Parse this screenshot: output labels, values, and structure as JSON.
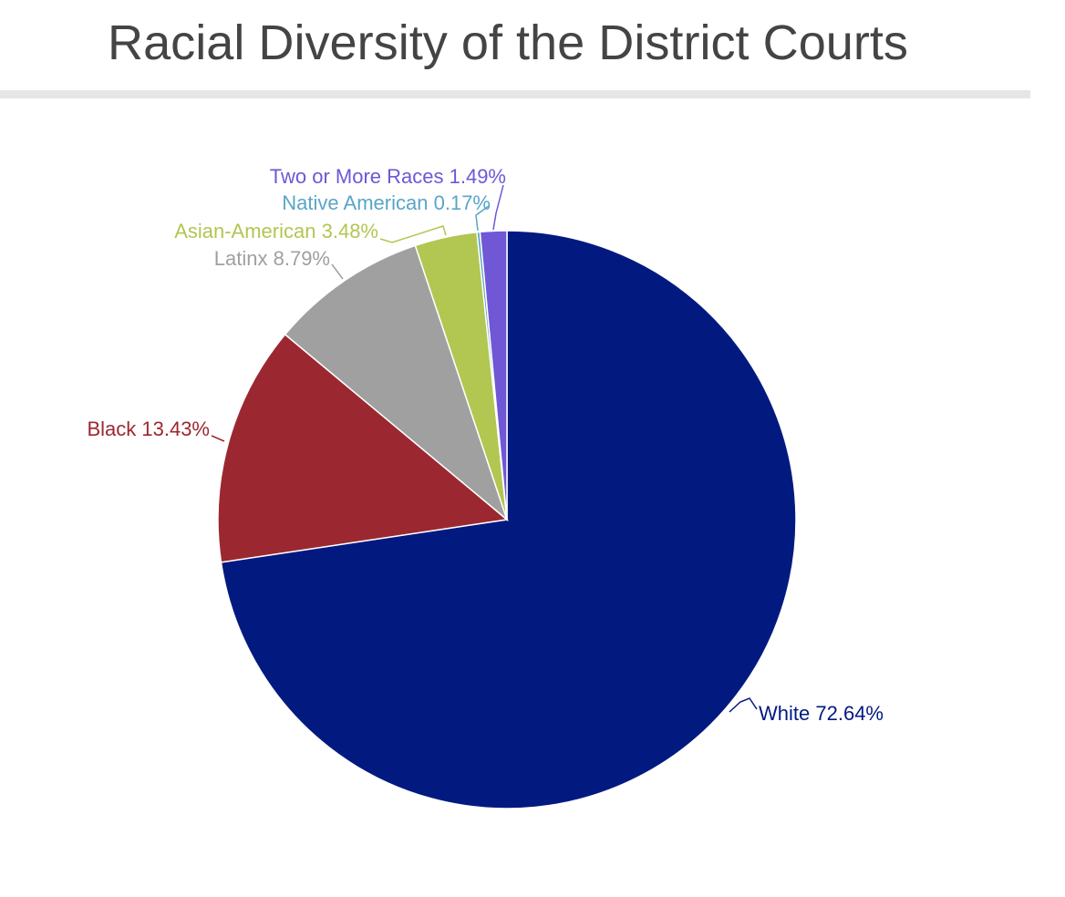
{
  "chart_data": {
    "type": "pie",
    "title": "Racial Diversity of the District Courts",
    "categories": [
      "White",
      "Black",
      "Latinx",
      "Asian-American",
      "Native American",
      "Two or More Races"
    ],
    "values": [
      72.64,
      13.43,
      8.79,
      3.48,
      0.17,
      1.49
    ],
    "value_labels": [
      "72.64%",
      "13.43%",
      "8.79%",
      "3.48%",
      "0.17%",
      "1.49%"
    ],
    "colors": [
      "#021a80",
      "#9b2830",
      "#a0a0a0",
      "#b2c652",
      "#5aa5c8",
      "#6f57d6"
    ]
  }
}
